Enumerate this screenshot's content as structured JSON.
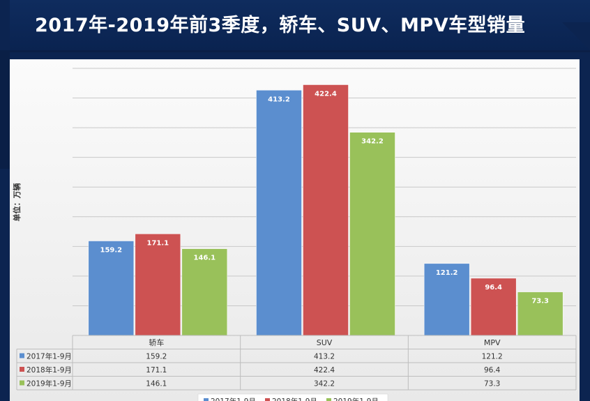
{
  "title": "2017年-2019年前3季度，轿车、SUV、MPV车型销量",
  "chart_data": {
    "type": "bar",
    "title": "2017年-2019年前3季度，轿车、SUV、MPV车型销量",
    "ylabel": "单位：万辆",
    "xlabel": "",
    "ylim": [
      0,
      450
    ],
    "ytick_step": 50,
    "grid": true,
    "categories": [
      "轿车",
      "SUV",
      "MPV"
    ],
    "series": [
      {
        "name": "2017年1-9月",
        "color": "#5b8ecf",
        "values": [
          159.2,
          413.2,
          121.2
        ]
      },
      {
        "name": "2018年1-9月",
        "color": "#cd5252",
        "values": [
          171.1,
          422.4,
          96.4
        ]
      },
      {
        "name": "2019年1-9月",
        "color": "#99c15a",
        "values": [
          146.1,
          342.2,
          73.3
        ]
      }
    ],
    "data_table": true
  }
}
